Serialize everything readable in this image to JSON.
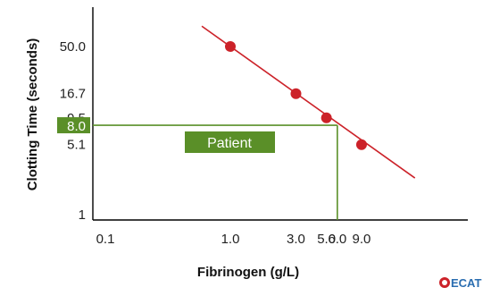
{
  "chart_data": {
    "type": "line",
    "title": "",
    "xlabel": "Fibrinogen (g/L)",
    "ylabel": "Clotting Time (seconds)",
    "x_scale": "log",
    "y_scale": "log",
    "xlim": [
      0.1,
      24
    ],
    "ylim": [
      1,
      230
    ],
    "x_ticks": [
      {
        "value": 0.1,
        "label": "0.1"
      },
      {
        "value": 1.0,
        "label": "1.0"
      },
      {
        "value": 3.0,
        "label": "3.0"
      },
      {
        "value": 5.0,
        "label": "5.0"
      },
      {
        "value": 6.0,
        "label": "6.0"
      },
      {
        "value": 9.0,
        "label": "9.0"
      }
    ],
    "y_ticks": [
      {
        "value": 1,
        "label": "1"
      },
      {
        "value": 5.1,
        "label": "5.1"
      },
      {
        "value": 9.5,
        "label": "9.5"
      },
      {
        "value": 16.7,
        "label": "16.7"
      },
      {
        "value": 50.0,
        "label": "50.0"
      }
    ],
    "series": [
      {
        "points": [
          {
            "x": 1.0,
            "y": 50.0
          },
          {
            "x": 3.0,
            "y": 16.7
          },
          {
            "x": 5.0,
            "y": 9.5
          },
          {
            "x": 9.0,
            "y": 5.1
          }
        ],
        "color": "#cc2229"
      }
    ],
    "fit_line": {
      "x_start": 0.62,
      "x_end": 22,
      "color": "#cc2229"
    },
    "patient": {
      "label": "Patient",
      "clotting_time": 8.0,
      "clotting_time_label": "8.0",
      "fibrinogen": 6.0,
      "color": "#5a8f28"
    },
    "grid": false,
    "legend": "none"
  },
  "logo": {
    "text": "ECAT",
    "color": "#2a6db0"
  }
}
